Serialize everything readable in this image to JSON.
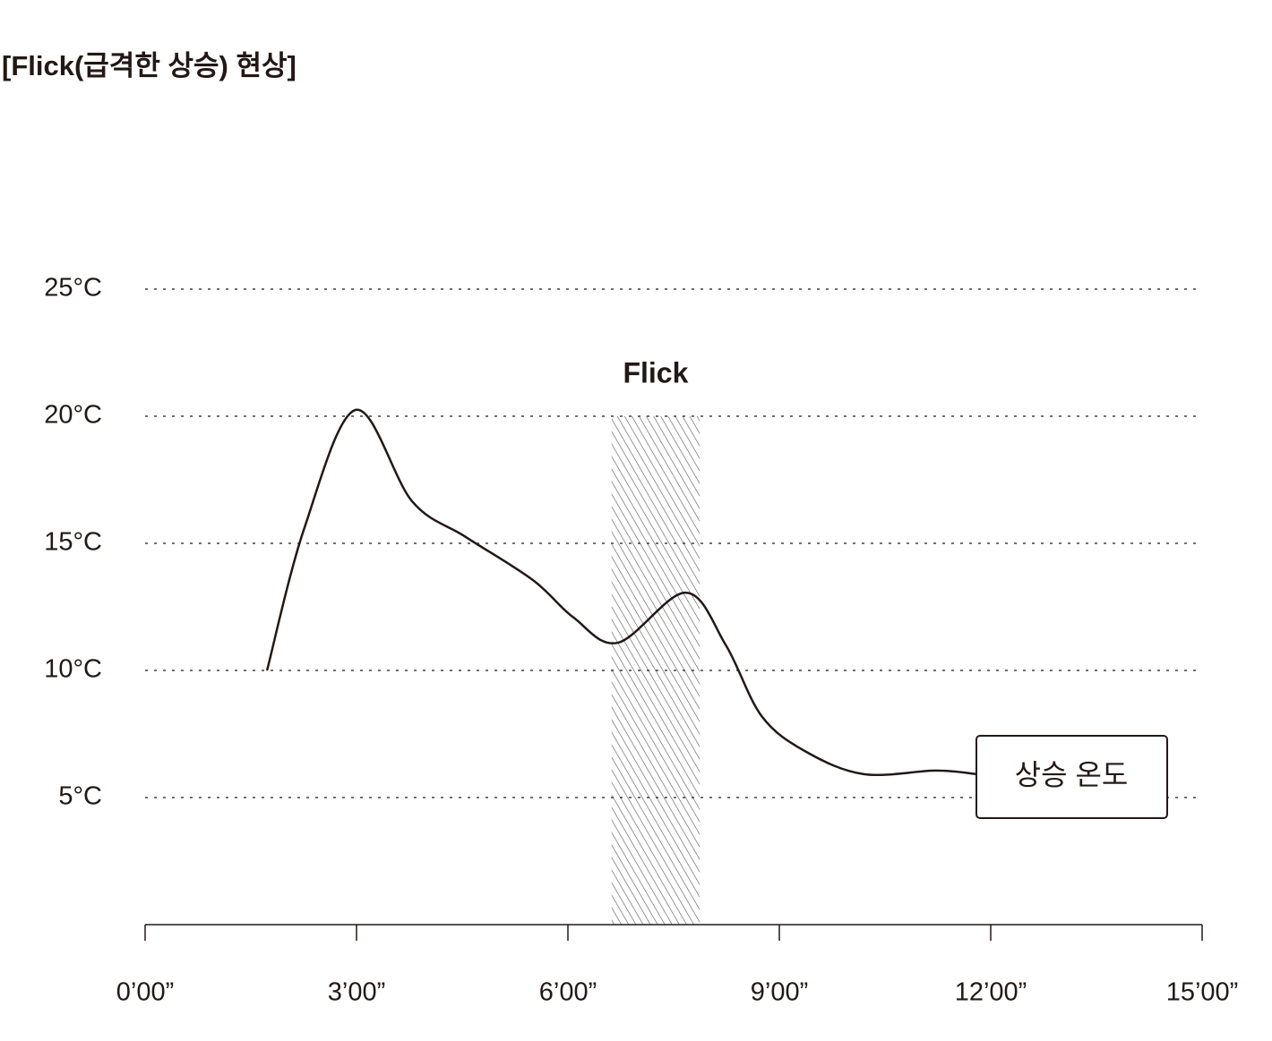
{
  "chart_data": {
    "type": "line",
    "title": "[Flick(급격한 상승) 현상]",
    "x": [
      1.73,
      2.26,
      2.99,
      3.79,
      4.55,
      5.5,
      6.08,
      6.71,
      7.67,
      8.24,
      8.75,
      9.38,
      10.2,
      11.22,
      11.8
    ],
    "series": [
      {
        "color": "#231815",
        "values": [
          10,
          15.6,
          20.25,
          16.65,
          15.25,
          13.56,
          12.08,
          11.09,
          13.06,
          11.0,
          8.2,
          6.8,
          5.92,
          6.06,
          5.92
        ]
      }
    ],
    "xlim": [
      0,
      15
    ],
    "xticks": [
      {
        "value": 0,
        "label": "0’00”"
      },
      {
        "value": 3,
        "label": "3’00”"
      },
      {
        "value": 6,
        "label": "6’00”"
      },
      {
        "value": 9,
        "label": "9’00”"
      },
      {
        "value": 12,
        "label": "12’00”"
      },
      {
        "value": 15,
        "label": "15’00”"
      }
    ],
    "ylim": [
      0,
      25
    ],
    "yticks": [
      {
        "value": 5,
        "label": "5°C"
      },
      {
        "value": 10,
        "label": "10°C"
      },
      {
        "value": 15,
        "label": "15°C"
      },
      {
        "value": 20,
        "label": "20°C"
      },
      {
        "value": 25,
        "label": "25°C"
      }
    ],
    "grid": true,
    "highlight": {
      "label": "Flick",
      "range": [
        6.62,
        7.87
      ],
      "top": 20
    },
    "annotation": {
      "text": "상승 온도"
    }
  }
}
